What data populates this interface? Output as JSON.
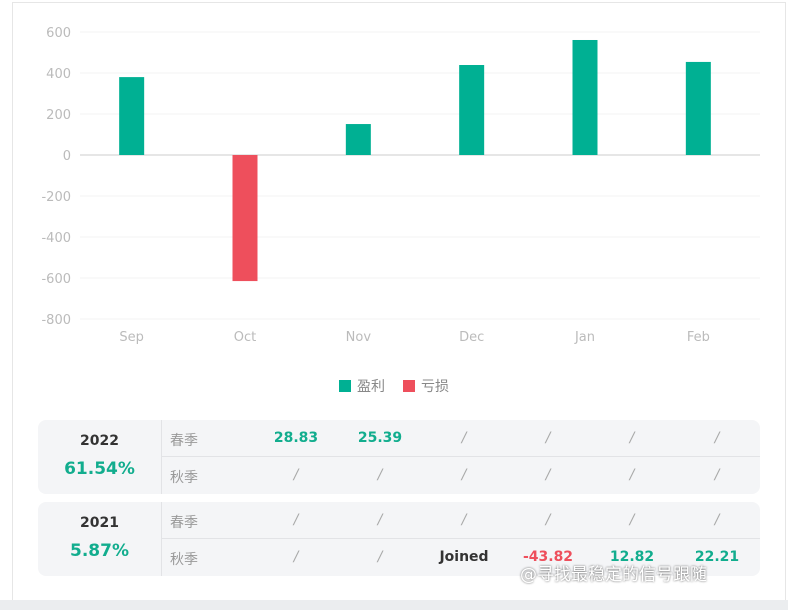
{
  "chart_data": {
    "type": "bar",
    "categories": [
      "Sep",
      "Oct",
      "Nov",
      "Dec",
      "Jan",
      "Feb"
    ],
    "values": [
      380,
      -615,
      151,
      439,
      561,
      454
    ],
    "ylim": [
      -800,
      600
    ],
    "yticks": [
      600,
      400,
      200,
      0,
      -200,
      -400,
      -600,
      -800
    ],
    "grid": true,
    "legend": [
      {
        "label": "盈利",
        "color": "#00b093"
      },
      {
        "label": "亏损",
        "color": "#ee4f5c"
      }
    ],
    "legend_position": "bottom"
  },
  "table": [
    {
      "year": "2022",
      "pct": "61.54%",
      "rows": [
        {
          "label": "春季",
          "cells": [
            "28.83",
            "25.39",
            "/",
            "/",
            "/",
            "/"
          ]
        },
        {
          "label": "秋季",
          "cells": [
            "/",
            "/",
            "/",
            "/",
            "/",
            "/"
          ]
        }
      ]
    },
    {
      "year": "2021",
      "pct": "5.87%",
      "rows": [
        {
          "label": "春季",
          "cells": [
            "/",
            "/",
            "/",
            "/",
            "/",
            "/"
          ]
        },
        {
          "label": "秋季",
          "cells": [
            "/",
            "/",
            "Joined",
            "-43.82",
            "12.82",
            "22.21"
          ]
        }
      ]
    }
  ],
  "watermark": "@寻找最稳定的信号跟随"
}
